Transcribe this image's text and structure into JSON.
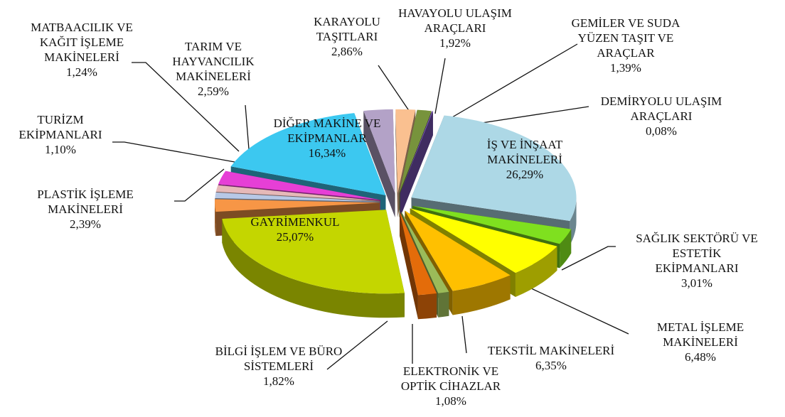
{
  "chart_data": {
    "type": "pie",
    "categories": [
      "KARAYOLU TAŞITLARI",
      "HAVAYOLU ULAŞIM ARAÇLARI",
      "GEMİLER VE SUDA YÜZEN TAŞIT VE ARAÇLAR",
      "DEMİRYOLU ULAŞIM ARAÇLARI",
      "İŞ VE İNŞAAT MAKİNELERİ",
      "SAĞLIK SEKTÖRÜ VE ESTETİK EKİPMANLARI",
      "METAL İŞLEME MAKİNELERİ",
      "TEKSTİL MAKİNELERİ",
      "ELEKTRONİK VE OPTİK CİHAZLAR",
      "BİLGİ İŞLEM VE BÜRO SİSTEMLERİ",
      "GAYRİMENKUL",
      "PLASTİK İŞLEME MAKİNELERİ",
      "TURİZM EKİPMANLARI",
      "MATBAACILIK VE KAĞIT İŞLEME MAKİNELERİ",
      "TARIM VE HAYVANCILIK MAKİNELERİ",
      "DİĞER MAKİNE VE EKİPMANLAR"
    ],
    "values": [
      2.86,
      1.92,
      1.39,
      0.08,
      26.29,
      3.01,
      6.48,
      6.35,
      1.08,
      1.82,
      25.07,
      2.39,
      1.1,
      1.24,
      2.59,
      16.34
    ],
    "value_labels": [
      "2,86%",
      "1,92%",
      "1,39%",
      "0,08%",
      "26,29%",
      "3,01%",
      "6,48%",
      "6,35%",
      "1,08%",
      "1,82%",
      "25,07%",
      "2,39%",
      "1,10%",
      "1,24%",
      "2,59%",
      "16,34%"
    ],
    "colors": [
      "#b3a2c7",
      "#fac090",
      "#77933c",
      "#7e57c2",
      "#add8e6",
      "#7fe01f",
      "#ffff00",
      "#ffc000",
      "#9bbb59",
      "#e46c0a",
      "#c4d600",
      "#f79646",
      "#b7c8e6",
      "#e6b9b8",
      "#e63fd6",
      "#3cc8f0"
    ]
  }
}
